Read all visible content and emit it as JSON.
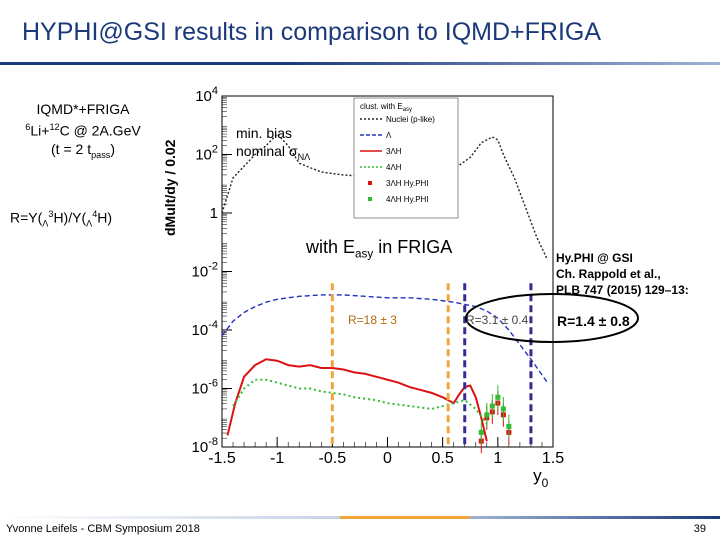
{
  "slide": {
    "title": "HYPHI@GSI results in comparison to IQMD+FRIGA",
    "colors": {
      "title": "#1c3a7a",
      "rule": "#1c3a7a",
      "accent_orange": "#f0a63c"
    }
  },
  "side_text": {
    "line1": "IQMD*+FRIGA",
    "system_mass": "6",
    "system_rest": "Li+",
    "system_mass2": "12",
    "system_rest2": "C @ 2A.GeV",
    "time_pre": "(t = 2 t",
    "time_sub": "pass",
    "time_post": ")",
    "ratio_label": "R=Y(ΛH)/Y(ΛH)",
    "ratio_parts": [
      "R=Y(",
      "Λ",
      "3",
      "H)/Y(",
      "Λ",
      "4",
      "H)"
    ]
  },
  "labels": {
    "min_bias": "min. bias",
    "nominal": "nominal σ",
    "nominal_sub": "NΛ",
    "with_easy_pre": "with E",
    "with_easy_sub": "asy",
    "with_easy_post": " in FRIGA",
    "hyphi_ref_1": "Hy.PHI @ GSI",
    "hyphi_ref_2": "Ch. Rappold et al.,",
    "hyphi_ref_3": "PLB 747 (2015) 129–13:",
    "r_left": "R=18 ± 3",
    "r_mid": "R=3.1 ± 0.4",
    "r_right": "R=1.4 ± 0.8"
  },
  "footer": {
    "author": "Yvonne Leifels - CBM Symposium 2018",
    "page": "39"
  },
  "chart_data": {
    "type": "line",
    "ylabel": "dMult/dy / 0.02",
    "xlabel": "y0",
    "xlim": [
      -1.5,
      1.5
    ],
    "ylim_log10": [
      -8,
      4
    ],
    "x_ticks": [
      -1.5,
      -1,
      -0.5,
      0,
      0.5,
      1,
      1.5
    ],
    "x_tick_labels": [
      "-1.5",
      "-1",
      "-0.5",
      "0",
      "0.5",
      "1",
      "1.5"
    ],
    "y_ticks_log10": [
      -8,
      -6,
      -4,
      -2,
      0,
      2,
      4
    ],
    "y_tick_labels": [
      "10-8",
      "10-6",
      "10-4",
      "10-2",
      "1",
      "102",
      "104"
    ],
    "legend": {
      "title": "clust. with E",
      "title_sub": "asy",
      "placement": "top-center",
      "entries": [
        {
          "label": "Nuclei (p-like)",
          "style": "dotted-black"
        },
        {
          "label": "Λ",
          "style": "dashed-blue"
        },
        {
          "label": "3ΛH",
          "style": "solid-red"
        },
        {
          "label": "4ΛH",
          "style": "dotted-green"
        },
        {
          "label": "3ΛH Hy.PHI",
          "style": "red-points"
        },
        {
          "label": "4ΛH Hy.PHI",
          "style": "green-points"
        }
      ]
    },
    "series": [
      {
        "name": "Nuclei (p-like)",
        "color": "#222222",
        "x": [
          -1.5,
          -1.4,
          -1.3,
          -1.2,
          -1.1,
          -1.0,
          -0.9,
          -0.8,
          -0.6,
          -0.4,
          -0.2,
          0,
          0.2,
          0.4,
          0.6,
          0.75,
          0.85,
          0.95,
          1.0,
          1.05,
          1.15,
          1.25,
          1.35,
          1.45
        ],
        "log10y": [
          0,
          1.2,
          1.6,
          2.0,
          2.3,
          2.7,
          2.3,
          1.7,
          1.4,
          1.3,
          1.25,
          1.3,
          1.3,
          1.35,
          1.5,
          1.9,
          2.4,
          2.6,
          2.5,
          2.0,
          1.2,
          0.2,
          -0.8,
          -1.6
        ]
      },
      {
        "name": "Λ",
        "color": "#2233bb",
        "x": [
          -1.5,
          -1.4,
          -1.3,
          -1.2,
          -1.1,
          -1.0,
          -0.9,
          -0.8,
          -0.6,
          -0.4,
          -0.2,
          0,
          0.2,
          0.4,
          0.6,
          0.8,
          0.9,
          1.0,
          1.1,
          1.2,
          1.3,
          1.45
        ],
        "log10y": [
          -4.2,
          -3.7,
          -3.4,
          -3.2,
          -3.05,
          -2.95,
          -2.9,
          -2.85,
          -2.8,
          -2.8,
          -2.85,
          -2.9,
          -2.9,
          -2.95,
          -3.05,
          -3.2,
          -3.35,
          -3.6,
          -4.0,
          -4.5,
          -5.0,
          -5.8
        ]
      },
      {
        "name": "3ΛH",
        "color": "#dd1111",
        "x": [
          -1.45,
          -1.38,
          -1.3,
          -1.2,
          -1.1,
          -1.0,
          -0.9,
          -0.8,
          -0.7,
          -0.6,
          -0.5,
          -0.4,
          -0.3,
          -0.2,
          -0.1,
          0,
          0.1,
          0.2,
          0.3,
          0.4,
          0.5,
          0.6,
          0.65,
          0.7,
          0.75,
          0.8,
          0.85,
          0.9
        ],
        "log10y": [
          -7.6,
          -6.5,
          -5.6,
          -5.2,
          -5.0,
          -5.05,
          -5.2,
          -5.25,
          -5.2,
          -5.3,
          -5.3,
          -5.35,
          -5.45,
          -5.5,
          -5.6,
          -5.7,
          -5.8,
          -5.95,
          -6.05,
          -6.15,
          -6.3,
          -6.5,
          -6.2,
          -5.95,
          -5.9,
          -6.3,
          -7.0,
          -7.8
        ]
      },
      {
        "name": "4ΛH",
        "color": "#33bb33",
        "x": [
          -1.4,
          -1.3,
          -1.2,
          -1.1,
          -1.0,
          -0.9,
          -0.8,
          -0.7,
          -0.6,
          -0.5,
          -0.4,
          -0.3,
          -0.2,
          -0.1,
          0,
          0.1,
          0.2,
          0.3,
          0.4,
          0.5,
          0.6,
          0.7,
          0.8,
          0.9
        ],
        "log10y": [
          -6.6,
          -6.0,
          -5.7,
          -5.7,
          -5.8,
          -5.9,
          -6.0,
          -6.0,
          -6.1,
          -6.15,
          -6.2,
          -6.3,
          -6.35,
          -6.4,
          -6.5,
          -6.55,
          -6.6,
          -6.65,
          -6.7,
          -6.6,
          -6.5,
          -6.4,
          -6.7,
          -7.2
        ]
      },
      {
        "name": "3ΛH Hy.PHI",
        "color": "#dd1111",
        "x": [
          0.85,
          0.9,
          0.95,
          1.0,
          1.05,
          1.1
        ],
        "log10y": [
          -7.8,
          -7.0,
          -6.8,
          -6.5,
          -6.9,
          -7.5
        ]
      },
      {
        "name": "4ΛH Hy.PHI",
        "color": "#33bb33",
        "x": [
          0.85,
          0.9,
          0.95,
          1.0,
          1.05,
          1.1
        ],
        "log10y": [
          -7.5,
          -6.9,
          -6.6,
          -6.3,
          -6.7,
          -7.3
        ]
      }
    ],
    "vlines": [
      {
        "x": -0.5,
        "color": "#f0a63c"
      },
      {
        "x": 0.55,
        "color": "#f0a63c"
      },
      {
        "x": 0.7,
        "color": "#3a2a90"
      },
      {
        "x": 1.3,
        "color": "#3a2a90"
      }
    ]
  }
}
